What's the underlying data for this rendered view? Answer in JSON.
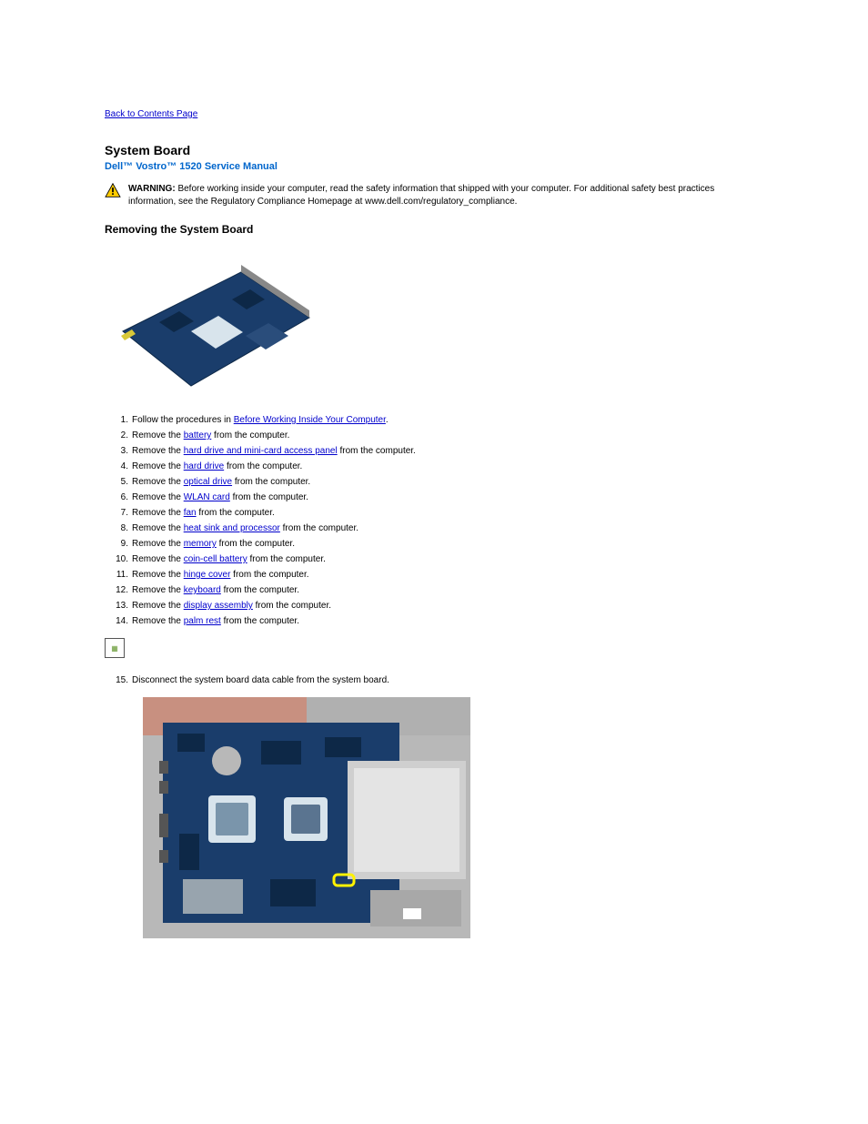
{
  "nav": {
    "back_label": "Back to Contents Page"
  },
  "header": {
    "title": "System Board",
    "subtitle": "Dell™ Vostro™ 1520 Service Manual"
  },
  "warning": {
    "label": "WARNING:",
    "text": "Before working inside your computer, read the safety information that shipped with your computer. For additional safety best practices information, see the Regulatory Compliance Homepage at www.dell.com/regulatory_compliance."
  },
  "section": {
    "heading": "Removing the System Board"
  },
  "steps": [
    {
      "pre": "Follow the procedures in ",
      "link": "Before Working Inside Your Computer",
      "post": "."
    },
    {
      "pre": "Remove the ",
      "link": "battery",
      "post": " from the computer."
    },
    {
      "pre": "Remove the ",
      "link": "hard drive and mini-card access panel",
      "post": " from the computer."
    },
    {
      "pre": "Remove the ",
      "link": "hard drive",
      "post": " from the computer."
    },
    {
      "pre": "Remove the ",
      "link": "optical drive",
      "post": " from the computer."
    },
    {
      "pre": "Remove the ",
      "link": "WLAN card",
      "post": " from the computer."
    },
    {
      "pre": "Remove the ",
      "link": "fan",
      "post": " from the computer."
    },
    {
      "pre": "Remove the ",
      "link": "heat sink and processor",
      "post": " from the computer."
    },
    {
      "pre": "Remove the ",
      "link": "memory",
      "post": " from the computer."
    },
    {
      "pre": "Remove the ",
      "link": "coin-cell battery",
      "post": " from the computer."
    },
    {
      "pre": "Remove the ",
      "link": "hinge cover",
      "post": " from the computer."
    },
    {
      "pre": "Remove the ",
      "link": "keyboard",
      "post": " from the computer."
    },
    {
      "pre": "Remove the ",
      "link": "display assembly",
      "post": " from the computer."
    },
    {
      "pre": "Remove the ",
      "link": "palm rest",
      "post": " from the computer."
    }
  ],
  "step15": {
    "text": "Disconnect the system board data cable from the system board."
  },
  "colors": {
    "link": "#0000cc",
    "heading_accent": "#0066cc",
    "pcb_blue": "#1a3d6b",
    "pcb_dark": "#0d2847",
    "chassis_silver": "#b8b8b8",
    "chassis_copper": "#c89080",
    "highlight_yellow": "#fff200",
    "cpu_socket": "#d8e4ec"
  }
}
